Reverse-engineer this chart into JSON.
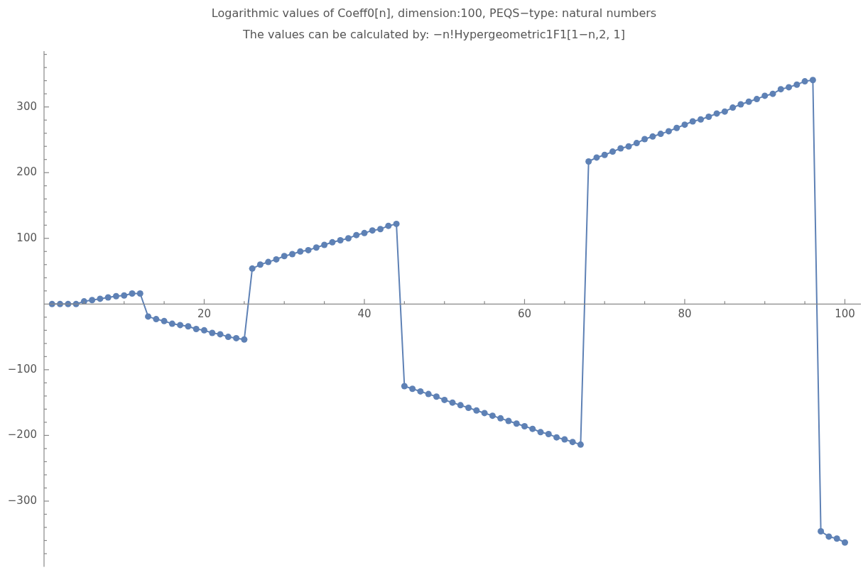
{
  "chart_data": {
    "type": "line",
    "title": "Logarithmic values of Coeff0[n], dimension:100, PEQS−type: natural numbers",
    "subtitle": "The values can be calculated by: −n!Hypergeometric1F1[1−n,2, 1]",
    "x": [
      1,
      2,
      3,
      4,
      5,
      6,
      7,
      8,
      9,
      10,
      11,
      12,
      13,
      14,
      15,
      16,
      17,
      18,
      19,
      20,
      21,
      22,
      23,
      24,
      25,
      26,
      27,
      28,
      29,
      30,
      31,
      32,
      33,
      34,
      35,
      36,
      37,
      38,
      39,
      40,
      41,
      42,
      43,
      44,
      45,
      46,
      47,
      48,
      49,
      50,
      51,
      52,
      53,
      54,
      55,
      56,
      57,
      58,
      59,
      60,
      61,
      62,
      63,
      64,
      65,
      66,
      67,
      68,
      69,
      70,
      71,
      72,
      73,
      74,
      75,
      76,
      77,
      78,
      79,
      80,
      81,
      82,
      83,
      84,
      85,
      86,
      87,
      88,
      89,
      90,
      91,
      92,
      93,
      94,
      95,
      96,
      97,
      98,
      99,
      100
    ],
    "series": [
      {
        "color": "#5e81b5",
        "values": [
          0,
          0,
          0,
          0,
          4,
          6,
          8,
          10,
          12,
          13,
          16,
          16,
          -19,
          -23,
          -26,
          -30,
          -32,
          -34,
          -38,
          -40,
          -44,
          -46,
          -50,
          -52,
          -54,
          54,
          60,
          64,
          68,
          73,
          76,
          80,
          82,
          86,
          90,
          94,
          97,
          100,
          105,
          108,
          112,
          114,
          119,
          122,
          -125,
          -129,
          -133,
          -137,
          -141,
          -146,
          -150,
          -154,
          -158,
          -162,
          -166,
          -170,
          -174,
          -178,
          -182,
          -186,
          -190,
          -195,
          -198,
          -203,
          -206,
          -210,
          -214,
          217,
          223,
          227,
          232,
          237,
          240,
          245,
          251,
          255,
          259,
          263,
          268,
          273,
          278,
          281,
          285,
          290,
          293,
          299,
          304,
          308,
          312,
          317,
          320,
          327,
          330,
          334,
          339,
          341,
          -346,
          -354,
          -357,
          -363
        ]
      }
    ],
    "xlim": [
      0,
      102
    ],
    "ylim": [
      -400,
      385
    ],
    "xticks": [
      {
        "value": 5,
        "label": null
      },
      {
        "value": 10,
        "label": null
      },
      {
        "value": 15,
        "label": null
      },
      20,
      {
        "value": 25,
        "label": null
      },
      {
        "value": 30,
        "label": null
      },
      {
        "value": 35,
        "label": null
      },
      40,
      {
        "value": 45,
        "label": null
      },
      {
        "value": 50,
        "label": null
      },
      {
        "value": 55,
        "label": null
      },
      60,
      {
        "value": 65,
        "label": null
      },
      {
        "value": 70,
        "label": null
      },
      {
        "value": 75,
        "label": null
      },
      80,
      {
        "value": 85,
        "label": null
      },
      {
        "value": 90,
        "label": null
      },
      {
        "value": 95,
        "label": null
      },
      100
    ],
    "yticks": [
      {
        "value": -380,
        "label": null
      },
      {
        "value": -360,
        "label": null
      },
      {
        "value": -340,
        "label": null
      },
      {
        "value": -320,
        "label": null
      },
      {
        "value": -300,
        "label": "−300"
      },
      {
        "value": -280,
        "label": null
      },
      {
        "value": -260,
        "label": null
      },
      {
        "value": -240,
        "label": null
      },
      {
        "value": -220,
        "label": null
      },
      {
        "value": -200,
        "label": "−200"
      },
      {
        "value": -180,
        "label": null
      },
      {
        "value": -160,
        "label": null
      },
      {
        "value": -140,
        "label": null
      },
      {
        "value": -120,
        "label": null
      },
      {
        "value": -100,
        "label": "−100"
      },
      {
        "value": -80,
        "label": null
      },
      {
        "value": -60,
        "label": null
      },
      {
        "value": -40,
        "label": null
      },
      {
        "value": -20,
        "label": null
      },
      {
        "value": 20,
        "label": null
      },
      {
        "value": 40,
        "label": null
      },
      {
        "value": 60,
        "label": null
      },
      {
        "value": 80,
        "label": null
      },
      100,
      {
        "value": 120,
        "label": null
      },
      {
        "value": 140,
        "label": null
      },
      {
        "value": 160,
        "label": null
      },
      {
        "value": 180,
        "label": null
      },
      200,
      {
        "value": 220,
        "label": null
      },
      {
        "value": 240,
        "label": null
      },
      {
        "value": 260,
        "label": null
      },
      {
        "value": 280,
        "label": null
      },
      300,
      {
        "value": 320,
        "label": null
      },
      {
        "value": 340,
        "label": null
      },
      {
        "value": 360,
        "label": null
      },
      {
        "value": 380,
        "label": null
      }
    ],
    "grid": false,
    "legend": false,
    "marker": "circle",
    "line_style": "solid"
  }
}
